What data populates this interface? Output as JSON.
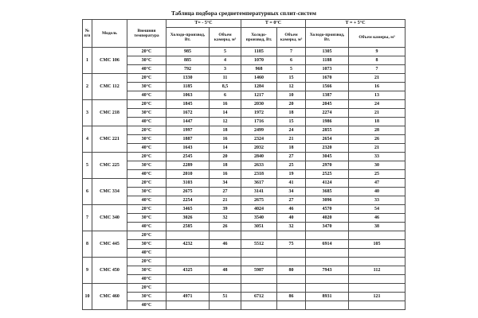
{
  "page": {
    "background": "#ffffff",
    "text_color": "#111111",
    "border_color": "#4a4a4a"
  },
  "title": "Таблица подбора среднетемпературных сплит-систем",
  "table": {
    "headers": {
      "num": "№ п/п",
      "model": "Модель",
      "ext_temp": "Внешняя температура",
      "groups": [
        {
          "label": "Т= - 5°С",
          "cold": "Холодо-производ, Вт.",
          "volume": "Объем камеры, м³"
        },
        {
          "label": "Т = 0°С",
          "cold": "Холодо-производ, Вт.",
          "volume": "Объем камеры, м³"
        },
        {
          "label": "Т = + 5°С",
          "cold": "Холодо-производ, Вт.",
          "volume": "Объем камеры, м³"
        }
      ]
    },
    "rows": [
      {
        "num": "1",
        "model": "СМС 106",
        "temps": [
          {
            "t": "20°С",
            "values": [
              "985",
              "5",
              "1185",
              "7",
              "1305",
              "9"
            ]
          },
          {
            "t": "30°С",
            "values": [
              "885",
              "4",
              "1070",
              "6",
              "1188",
              "8"
            ]
          },
          {
            "t": "40°С",
            "values": [
              "792",
              "3",
              "968",
              "5",
              "1073",
              "7"
            ]
          }
        ]
      },
      {
        "num": "2",
        "model": "СМС 112",
        "temps": [
          {
            "t": "20°С",
            "values": [
              "1330",
              "11",
              "1460",
              "15",
              "1670",
              "21"
            ]
          },
          {
            "t": "30°С",
            "values": [
              "1185",
              "8,5",
              "1284",
              "12",
              "1566",
              "16"
            ]
          },
          {
            "t": "40°С",
            "values": [
              "1063",
              "6",
              "1217",
              "10",
              "1387",
              "13"
            ]
          }
        ]
      },
      {
        "num": "3",
        "model": "СМС 218",
        "temps": [
          {
            "t": "20°С",
            "values": [
              "1845",
              "16",
              "2030",
              "20",
              "2045",
              "24"
            ]
          },
          {
            "t": "30°С",
            "values": [
              "1672",
              "14",
              "1972",
              "18",
              "2274",
              "21"
            ]
          },
          {
            "t": "40°С",
            "values": [
              "1447",
              "12",
              "1716",
              "15",
              "1986",
              "18"
            ]
          }
        ]
      },
      {
        "num": "4",
        "model": "СМС 221",
        "temps": [
          {
            "t": "20°С",
            "values": [
              "1997",
              "18",
              "2499",
              "24",
              "2855",
              "28"
            ]
          },
          {
            "t": "30°С",
            "values": [
              "1887",
              "16",
              "2324",
              "21",
              "2654",
              "26"
            ]
          },
          {
            "t": "40°С",
            "values": [
              "1643",
              "14",
              "2032",
              "18",
              "2320",
              "21"
            ]
          }
        ]
      },
      {
        "num": "5",
        "model": "СМС 225",
        "temps": [
          {
            "t": "20°С",
            "values": [
              "2545",
              "20",
              "2840",
              "27",
              "3045",
              "33"
            ]
          },
          {
            "t": "30°С",
            "values": [
              "2289",
              "18",
              "2633",
              "25",
              "2970",
              "30"
            ]
          },
          {
            "t": "40°С",
            "values": [
              "2010",
              "16",
              "2318",
              "19",
              "2525",
              "25"
            ]
          }
        ]
      },
      {
        "num": "6",
        "model": "СМС 334",
        "temps": [
          {
            "t": "20°С",
            "values": [
              "3103",
              "34",
              "3617",
              "41",
              "4124",
              "47"
            ]
          },
          {
            "t": "30°С",
            "values": [
              "2675",
              "27",
              "3141",
              "34",
              "3685",
              "40"
            ]
          },
          {
            "t": "40°С",
            "values": [
              "2254",
              "21",
              "2675",
              "27",
              "3096",
              "33"
            ]
          }
        ]
      },
      {
        "num": "7",
        "model": "СМС 340",
        "temps": [
          {
            "t": "20°С",
            "values": [
              "3465",
              "39",
              "4024",
              "46",
              "4570",
              "54"
            ]
          },
          {
            "t": "30°С",
            "values": [
              "3026",
              "32",
              "3540",
              "40",
              "4020",
              "46"
            ]
          },
          {
            "t": "40°С",
            "values": [
              "2585",
              "26",
              "3051",
              "32",
              "3470",
              "38"
            ]
          }
        ]
      },
      {
        "num": "8",
        "model": "СМС 445",
        "temps": [
          {
            "t": "20°С",
            "values": [
              "",
              "",
              "",
              "",
              "",
              ""
            ]
          },
          {
            "t": "30°С",
            "values": [
              "4232",
              "46",
              "5512",
              "75",
              "6914",
              "105"
            ]
          },
          {
            "t": "40°С",
            "values": [
              "",
              "",
              "",
              "",
              "",
              ""
            ]
          }
        ]
      },
      {
        "num": "9",
        "model": "СМС 450",
        "temps": [
          {
            "t": "20°С",
            "values": [
              "",
              "",
              "",
              "",
              "",
              ""
            ]
          },
          {
            "t": "30°С",
            "values": [
              "4325",
              "48",
              "5987",
              "80",
              "7943",
              "112"
            ]
          },
          {
            "t": "40°С",
            "values": [
              "",
              "",
              "",
              "",
              "",
              ""
            ]
          }
        ]
      },
      {
        "num": "10",
        "model": "СМС 460",
        "temps": [
          {
            "t": "20°С",
            "values": [
              "",
              "",
              "",
              "",
              "",
              ""
            ]
          },
          {
            "t": "30°С",
            "values": [
              "4971",
              "51",
              "6712",
              "86",
              "8931",
              "121"
            ]
          },
          {
            "t": "40°С",
            "values": [
              "",
              "",
              "",
              "",
              "",
              ""
            ]
          }
        ]
      }
    ]
  }
}
